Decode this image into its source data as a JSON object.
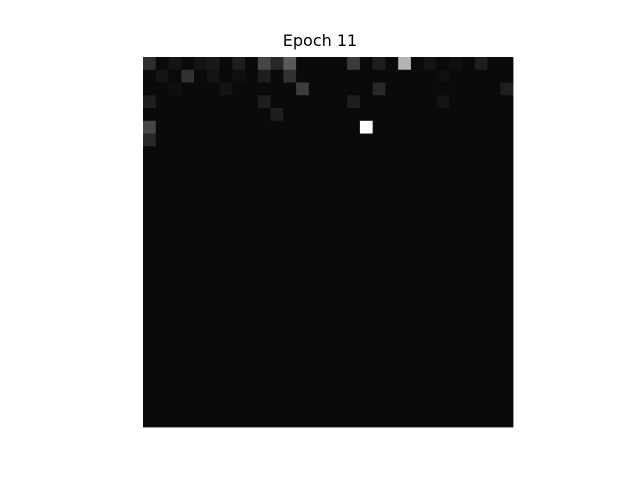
{
  "chart_data": {
    "type": "heatmap",
    "title": "Epoch 11",
    "colormap": "gray",
    "vmin": 0,
    "vmax": 255,
    "axes_visible": false,
    "rows": 29,
    "cols": 29,
    "values": [
      [
        45,
        10,
        20,
        10,
        20,
        25,
        10,
        30,
        10,
        70,
        40,
        90,
        10,
        10,
        10,
        10,
        60,
        10,
        30,
        10,
        180,
        10,
        20,
        10,
        15,
        10,
        30,
        10,
        10
      ],
      [
        10,
        20,
        10,
        50,
        10,
        20,
        10,
        15,
        10,
        30,
        10,
        50,
        10,
        10,
        10,
        10,
        10,
        10,
        10,
        10,
        10,
        10,
        10,
        15,
        10,
        10,
        10,
        10,
        10
      ],
      [
        10,
        10,
        15,
        10,
        10,
        10,
        20,
        10,
        10,
        10,
        10,
        10,
        60,
        10,
        10,
        10,
        10,
        10,
        40,
        10,
        10,
        10,
        10,
        10,
        10,
        10,
        10,
        10,
        30
      ],
      [
        30,
        10,
        10,
        10,
        10,
        10,
        10,
        10,
        10,
        30,
        10,
        10,
        10,
        10,
        10,
        10,
        30,
        10,
        10,
        10,
        10,
        10,
        10,
        20,
        10,
        10,
        10,
        10,
        10
      ],
      [
        10,
        10,
        10,
        10,
        10,
        10,
        10,
        10,
        10,
        10,
        30,
        10,
        10,
        10,
        10,
        10,
        10,
        10,
        10,
        10,
        10,
        10,
        10,
        10,
        10,
        10,
        10,
        10,
        10
      ],
      [
        70,
        10,
        10,
        10,
        10,
        10,
        10,
        10,
        10,
        10,
        10,
        10,
        10,
        10,
        10,
        10,
        10,
        255,
        10,
        10,
        10,
        10,
        10,
        10,
        10,
        10,
        10,
        10,
        10
      ],
      [
        40,
        10,
        10,
        10,
        10,
        10,
        10,
        10,
        10,
        10,
        10,
        10,
        10,
        10,
        10,
        10,
        10,
        10,
        10,
        10,
        10,
        10,
        10,
        10,
        10,
        10,
        10,
        10,
        10
      ],
      [
        10,
        10,
        10,
        10,
        10,
        10,
        10,
        10,
        10,
        10,
        10,
        10,
        10,
        10,
        10,
        10,
        10,
        10,
        10,
        10,
        10,
        10,
        10,
        10,
        10,
        10,
        10,
        10,
        10
      ],
      [
        10,
        10,
        10,
        10,
        10,
        10,
        10,
        10,
        10,
        10,
        10,
        10,
        10,
        10,
        10,
        10,
        10,
        10,
        10,
        10,
        10,
        10,
        10,
        10,
        10,
        10,
        10,
        10,
        10
      ],
      [
        10,
        10,
        10,
        10,
        10,
        10,
        10,
        10,
        10,
        10,
        10,
        10,
        10,
        10,
        10,
        10,
        10,
        10,
        10,
        10,
        10,
        10,
        10,
        10,
        10,
        10,
        10,
        10,
        10
      ],
      [
        10,
        10,
        10,
        10,
        10,
        10,
        10,
        10,
        10,
        10,
        10,
        10,
        10,
        10,
        10,
        10,
        10,
        10,
        10,
        10,
        10,
        10,
        10,
        10,
        10,
        10,
        10,
        10,
        10
      ],
      [
        10,
        10,
        10,
        10,
        10,
        10,
        10,
        10,
        10,
        10,
        10,
        10,
        10,
        10,
        10,
        10,
        10,
        10,
        10,
        10,
        10,
        10,
        10,
        10,
        10,
        10,
        10,
        10,
        10
      ],
      [
        10,
        10,
        10,
        10,
        10,
        10,
        10,
        10,
        10,
        10,
        10,
        10,
        10,
        10,
        10,
        10,
        10,
        10,
        10,
        10,
        10,
        10,
        10,
        10,
        10,
        10,
        10,
        10,
        10
      ],
      [
        10,
        10,
        10,
        10,
        10,
        10,
        10,
        10,
        10,
        10,
        10,
        10,
        10,
        10,
        10,
        10,
        10,
        10,
        10,
        10,
        10,
        10,
        10,
        10,
        10,
        10,
        10,
        10,
        10
      ],
      [
        10,
        10,
        10,
        10,
        10,
        10,
        10,
        10,
        10,
        10,
        10,
        10,
        10,
        10,
        10,
        10,
        10,
        10,
        10,
        10,
        10,
        10,
        10,
        10,
        10,
        10,
        10,
        10,
        10
      ],
      [
        10,
        10,
        10,
        10,
        10,
        10,
        10,
        10,
        10,
        10,
        10,
        10,
        10,
        10,
        10,
        10,
        10,
        10,
        10,
        10,
        10,
        10,
        10,
        10,
        10,
        10,
        10,
        10,
        10
      ],
      [
        10,
        10,
        10,
        10,
        10,
        10,
        10,
        10,
        10,
        10,
        10,
        10,
        10,
        10,
        10,
        10,
        10,
        10,
        10,
        10,
        10,
        10,
        10,
        10,
        10,
        10,
        10,
        10,
        10
      ],
      [
        10,
        10,
        10,
        10,
        10,
        10,
        10,
        10,
        10,
        10,
        10,
        10,
        10,
        10,
        10,
        10,
        10,
        10,
        10,
        10,
        10,
        10,
        10,
        10,
        10,
        10,
        10,
        10,
        10
      ],
      [
        10,
        10,
        10,
        10,
        10,
        10,
        10,
        10,
        10,
        10,
        10,
        10,
        10,
        10,
        10,
        10,
        10,
        10,
        10,
        10,
        10,
        10,
        10,
        10,
        10,
        10,
        10,
        10,
        10
      ],
      [
        10,
        10,
        10,
        10,
        10,
        10,
        10,
        10,
        10,
        10,
        10,
        10,
        10,
        10,
        10,
        10,
        10,
        10,
        10,
        10,
        10,
        10,
        10,
        10,
        10,
        10,
        10,
        10,
        10
      ],
      [
        10,
        10,
        10,
        10,
        10,
        10,
        10,
        10,
        10,
        10,
        10,
        10,
        10,
        10,
        10,
        10,
        10,
        10,
        10,
        10,
        10,
        10,
        10,
        10,
        10,
        10,
        10,
        10,
        10
      ],
      [
        10,
        10,
        10,
        10,
        10,
        10,
        10,
        10,
        10,
        10,
        10,
        10,
        10,
        10,
        10,
        10,
        10,
        10,
        10,
        10,
        10,
        10,
        10,
        10,
        10,
        10,
        10,
        10,
        10
      ],
      [
        10,
        10,
        10,
        10,
        10,
        10,
        10,
        10,
        10,
        10,
        10,
        10,
        10,
        10,
        10,
        10,
        10,
        10,
        10,
        10,
        10,
        10,
        10,
        10,
        10,
        10,
        10,
        10,
        10
      ],
      [
        10,
        10,
        10,
        10,
        10,
        10,
        10,
        10,
        10,
        10,
        10,
        10,
        10,
        10,
        10,
        10,
        10,
        10,
        10,
        10,
        10,
        10,
        10,
        10,
        10,
        10,
        10,
        10,
        10
      ],
      [
        10,
        10,
        10,
        10,
        10,
        10,
        10,
        10,
        10,
        10,
        10,
        10,
        10,
        10,
        10,
        10,
        10,
        10,
        10,
        10,
        10,
        10,
        10,
        10,
        10,
        10,
        10,
        10,
        10
      ],
      [
        10,
        10,
        10,
        10,
        10,
        10,
        10,
        10,
        10,
        10,
        10,
        10,
        10,
        10,
        10,
        10,
        10,
        10,
        10,
        10,
        10,
        10,
        10,
        10,
        10,
        10,
        10,
        10,
        10
      ],
      [
        10,
        10,
        10,
        10,
        10,
        10,
        10,
        10,
        10,
        10,
        10,
        10,
        10,
        10,
        10,
        10,
        10,
        10,
        10,
        10,
        10,
        10,
        10,
        10,
        10,
        10,
        10,
        10,
        10
      ],
      [
        10,
        10,
        10,
        10,
        10,
        10,
        10,
        10,
        10,
        10,
        10,
        10,
        10,
        10,
        10,
        10,
        10,
        10,
        10,
        10,
        10,
        10,
        10,
        10,
        10,
        10,
        10,
        10,
        10
      ],
      [
        10,
        10,
        10,
        10,
        10,
        10,
        10,
        10,
        10,
        10,
        10,
        10,
        10,
        10,
        10,
        10,
        10,
        10,
        10,
        10,
        10,
        10,
        10,
        10,
        10,
        10,
        10,
        10,
        10
      ]
    ]
  }
}
